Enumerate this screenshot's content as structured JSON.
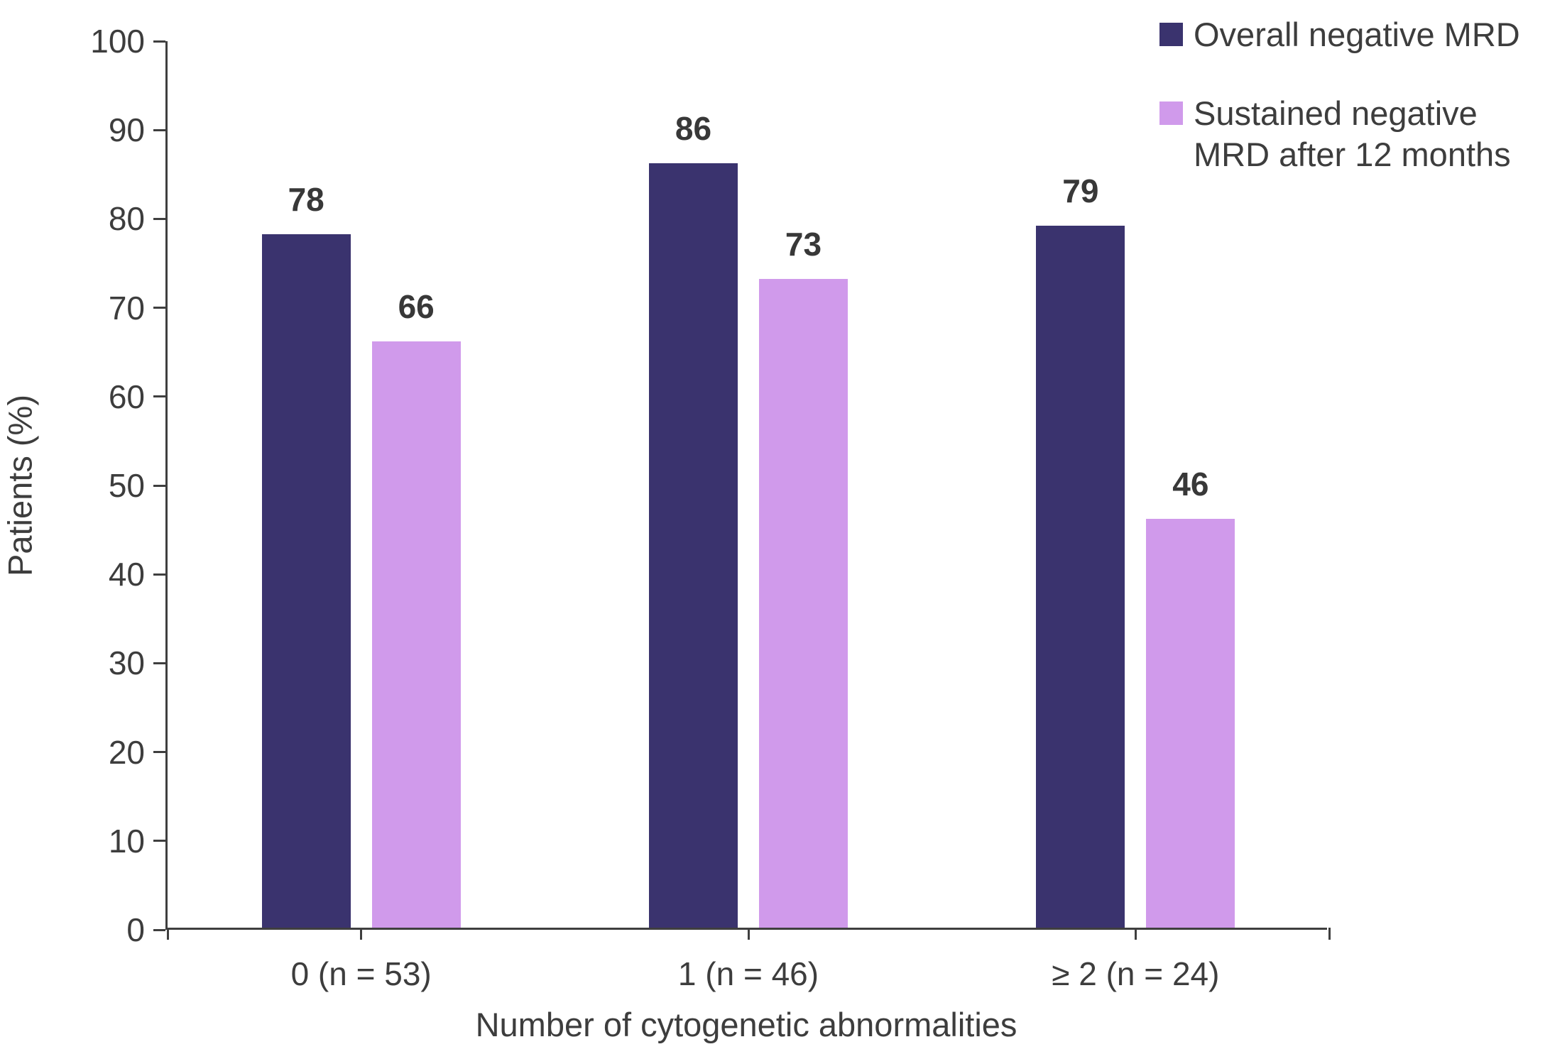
{
  "chart_data": {
    "type": "bar",
    "title": "",
    "xlabel": "Number of cytogenetic abnormalities",
    "ylabel": "Patients (%)",
    "ylim": [
      0,
      100
    ],
    "ytick_step": 10,
    "grid": false,
    "legend_position": "top-right",
    "bar_value_labels": true,
    "categories": [
      "0 (n = 53)",
      "1 (n = 46)",
      "≥ 2 (n = 24)"
    ],
    "series": [
      {
        "name": "Overall negative MRD",
        "color": "#3a336e",
        "values": [
          78,
          86,
          79
        ]
      },
      {
        "name": "Sustained negative MRD after 12 months",
        "color": "#d09aeb",
        "values": [
          66,
          73,
          46
        ]
      }
    ]
  },
  "colors": {
    "axis": "#3f3f3f",
    "text": "#3d3d3d",
    "series_dark": "#3a336e",
    "series_light": "#d09aeb"
  }
}
